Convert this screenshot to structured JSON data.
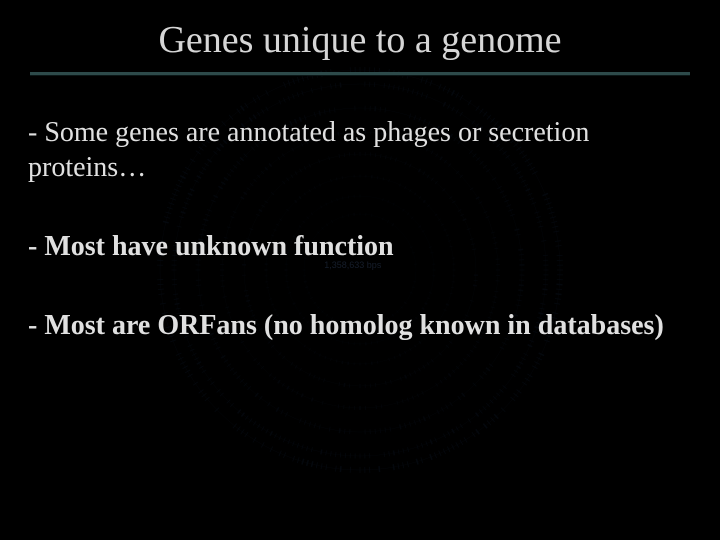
{
  "title": "Genes unique to a genome",
  "bullets": [
    "- Some genes are annotated as phages or secretion proteins…",
    "- Most have unknown function",
    "- Most are ORFans (no homolog known in databases)"
  ],
  "genome": {
    "center_label": "1,358,633 bps",
    "background_color": "#000000",
    "ring_stroke_color": "#1a2a45",
    "ring_tick_color": "#1e3458",
    "inner_dot_color": "#24406a",
    "rings": [
      {
        "r": 200,
        "ticks": 260,
        "tick_len": 6,
        "opacity": 0.45
      },
      {
        "r": 186,
        "ticks": 240,
        "tick_len": 5,
        "opacity": 0.4
      },
      {
        "r": 162,
        "ticks": 200,
        "tick_len": 5,
        "opacity": 0.35
      },
      {
        "r": 138,
        "ticks": 160,
        "tick_len": 4,
        "opacity": 0.3
      },
      {
        "r": 116,
        "ticks": 140,
        "tick_len": 4,
        "opacity": 0.3
      },
      {
        "r": 94,
        "ticks": 100,
        "tick_len": 3,
        "opacity": 0.25
      },
      {
        "r": 74,
        "ticks": 80,
        "tick_len": 3,
        "opacity": 0.22
      },
      {
        "r": 56,
        "ticks": 60,
        "tick_len": 3,
        "opacity": 0.2
      }
    ]
  },
  "style": {
    "title_color": "#d6d6d6",
    "title_fontsize": 38,
    "body_color": "#e0e0e0",
    "body_fontsize": 28,
    "divider_color": "#2d4a4a",
    "divider_width": 660,
    "font_family": "Times New Roman"
  }
}
